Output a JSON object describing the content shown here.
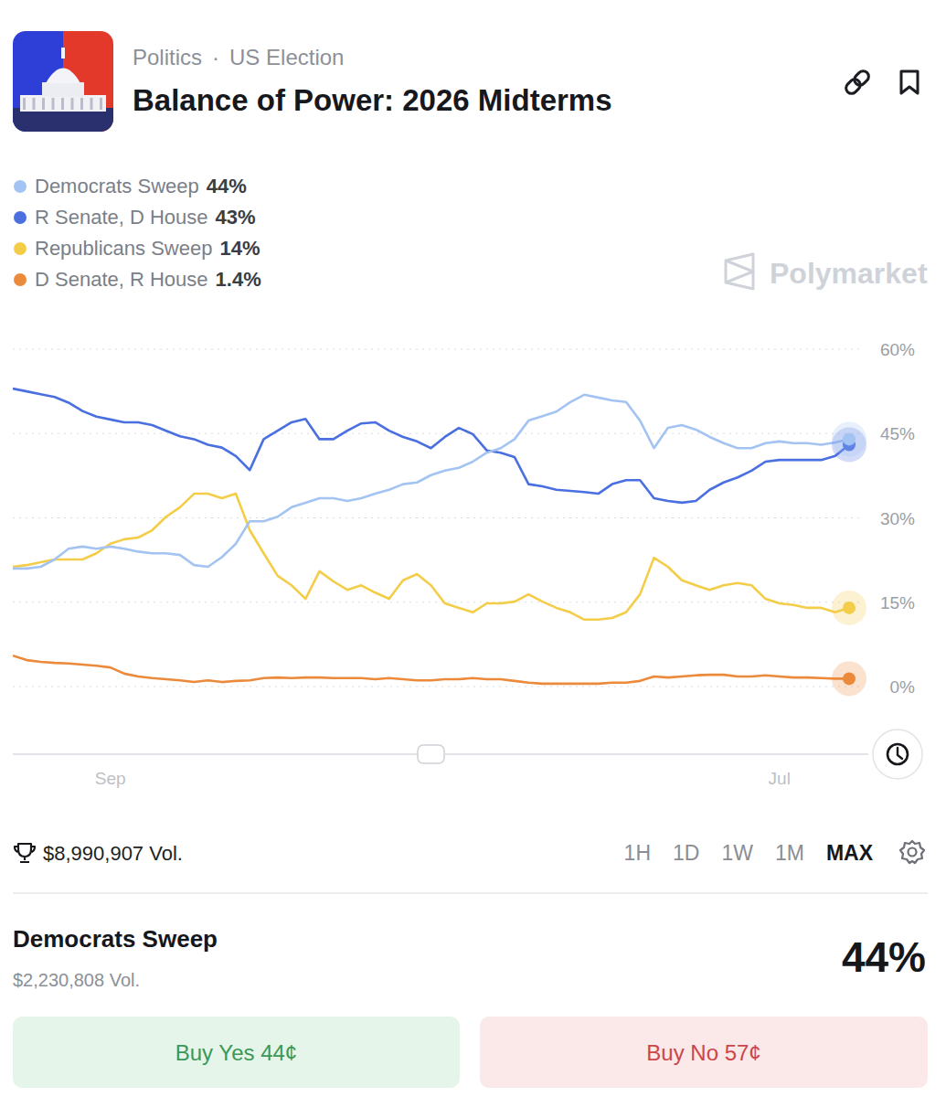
{
  "header": {
    "category": "Politics",
    "separator": "·",
    "subcategory": "US Election"
  },
  "chart_data": {
    "type": "line",
    "title": "Balance of Power: 2026 Midterms",
    "categories": [
      null,
      null,
      null,
      null,
      null,
      null,
      null,
      "Sep",
      null,
      null,
      null,
      null,
      null,
      null,
      null,
      null,
      null,
      null,
      null,
      null,
      null,
      null,
      null,
      null,
      null,
      null,
      null,
      null,
      null,
      null,
      null,
      null,
      null,
      null,
      null,
      null,
      null,
      null,
      null,
      null,
      null,
      null,
      null,
      null,
      null,
      null,
      null,
      null,
      null,
      null,
      null,
      null,
      null,
      null,
      null,
      "Jul",
      null,
      null,
      null,
      null,
      null
    ],
    "series": [
      {
        "name": "Democrats Sweep",
        "current": "44%",
        "color": "#a3c3f2",
        "values": [
          21,
          21,
          21.3,
          22.6,
          24.5,
          24.9,
          24.5,
          24.9,
          24.5,
          24,
          23.7,
          23.7,
          23.4,
          21.6,
          21.3,
          23,
          25.4,
          29.4,
          29.4,
          30.2,
          31.9,
          32.7,
          33.5,
          33.5,
          33,
          33.5,
          34.3,
          35,
          36,
          36.3,
          37.6,
          38.4,
          38.9,
          40,
          41.6,
          42.4,
          44,
          47.3,
          48.1,
          48.9,
          50.6,
          51.9,
          51.4,
          50.9,
          50.6,
          47.3,
          42.4,
          46,
          46.5,
          45.7,
          44.4,
          43.3,
          42.4,
          42.4,
          43.3,
          43.6,
          43.3,
          43.3,
          43,
          43.4,
          44
        ]
      },
      {
        "name": "R Senate, D House",
        "current": "43%",
        "color": "#4a6fe0",
        "values": [
          53,
          52.5,
          52,
          51.5,
          50.5,
          49,
          48,
          47.5,
          47,
          47,
          46.5,
          45.5,
          44.5,
          44,
          43,
          42.5,
          41,
          38.5,
          44,
          45.5,
          47,
          47.6,
          44,
          44,
          45.5,
          46.8,
          47,
          45.5,
          44.4,
          43.6,
          42.4,
          44.4,
          46,
          44.9,
          42,
          41.6,
          40.8,
          36,
          35.6,
          35,
          34.8,
          34.6,
          34.3,
          36,
          36.7,
          36.7,
          33.5,
          33,
          32.7,
          33,
          35,
          36.3,
          37.2,
          38.4,
          40,
          40.3,
          40.3,
          40.3,
          40.3,
          41,
          43
        ]
      },
      {
        "name": "Republicans Sweep",
        "current": "14%",
        "color": "#f4cd48",
        "values": [
          21.3,
          21.6,
          22.1,
          22.6,
          22.6,
          22.6,
          23.7,
          25.4,
          26.2,
          26.5,
          27.8,
          30.2,
          31.9,
          34.3,
          34.3,
          33.5,
          34.3,
          27.8,
          23.7,
          19.7,
          18,
          15.6,
          20.5,
          18.7,
          17.2,
          18,
          16.7,
          15.6,
          18.9,
          20,
          18,
          14.8,
          14,
          13.2,
          14.8,
          14.8,
          15.1,
          16.4,
          15.1,
          14,
          13.2,
          11.9,
          11.9,
          12.2,
          13.2,
          16.4,
          22.9,
          21.3,
          18.9,
          18,
          17.2,
          18,
          18.4,
          18,
          15.6,
          14.8,
          14.5,
          14,
          14,
          13.2,
          14
        ]
      },
      {
        "name": "D Senate, R House",
        "current": "1.4%",
        "color": "#ec8a3c",
        "values": [
          5.5,
          4.7,
          4.4,
          4.2,
          4.1,
          3.9,
          3.7,
          3.4,
          2.3,
          1.8,
          1.5,
          1.3,
          1.1,
          0.8,
          1.1,
          0.8,
          1,
          1.1,
          1.5,
          1.6,
          1.5,
          1.6,
          1.6,
          1.5,
          1.5,
          1.5,
          1.3,
          1.5,
          1.3,
          1.1,
          1.1,
          1.3,
          1.3,
          1.5,
          1.3,
          1.3,
          1,
          0.7,
          0.5,
          0.5,
          0.5,
          0.5,
          0.5,
          0.7,
          0.7,
          1,
          1.8,
          1.6,
          1.8,
          2,
          2.1,
          2.1,
          1.8,
          1.8,
          2,
          1.8,
          1.6,
          1.6,
          1.5,
          1.4,
          1.4
        ]
      }
    ],
    "ylim": [
      0,
      60
    ],
    "yticks": [
      {
        "value": 0,
        "label": "0%"
      },
      {
        "value": 15,
        "label": "15%"
      },
      {
        "value": 30,
        "label": "30%"
      },
      {
        "value": 45,
        "label": "45%"
      },
      {
        "value": 60,
        "label": "60%"
      }
    ],
    "grid": true,
    "legend": "top-left"
  },
  "watermark": "Polymarket",
  "footer": {
    "volume": "$8,990,907 Vol.",
    "ranges": [
      "1H",
      "1D",
      "1W",
      "1M",
      "MAX"
    ],
    "selected_range": "MAX"
  },
  "market": {
    "outcome": "Democrats Sweep",
    "volume": "$2,230,808 Vol.",
    "chance": "44%",
    "buy_yes": "Buy Yes 44¢",
    "buy_no": "Buy No 57¢"
  }
}
